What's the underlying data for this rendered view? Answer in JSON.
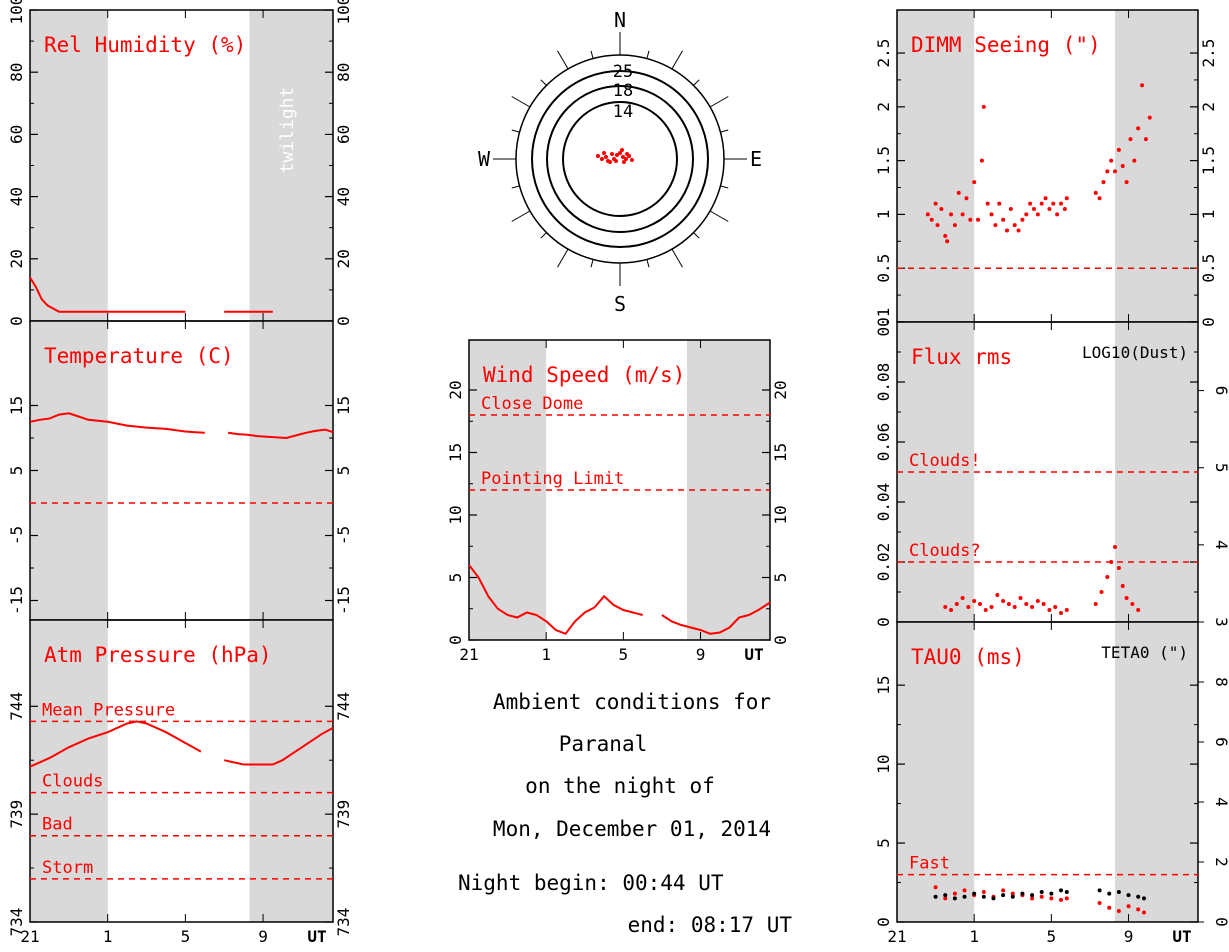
{
  "caption": {
    "line1": "Ambient conditions for",
    "line2": "Paranal",
    "line3": "on the night of",
    "line4": "Mon, December 01, 2014",
    "night_begin": "Night begin: 00:44 UT",
    "night_end": "end: 08:17 UT"
  },
  "colors": {
    "data": "#ff0000",
    "twilight": "#d9d9d9",
    "secondary": "#000000"
  },
  "time_axis": {
    "ticks": [
      "21",
      "1",
      "5",
      "9"
    ],
    "unit": "UT"
  },
  "chart_data": [
    {
      "id": "humidity",
      "type": "line",
      "title": "Rel Humidity (%)",
      "ylim": [
        0,
        100
      ],
      "yticks": [
        "0",
        "20",
        "40",
        "60",
        "80",
        "100"
      ],
      "annotation": "twilight",
      "series": [
        {
          "x": [
            21.0,
            21.3,
            21.6,
            21.9,
            22.2,
            22.5,
            23.0,
            23.5,
            24.0,
            25.0,
            26.0,
            27.0,
            28.0,
            29.0
          ],
          "y": [
            14,
            11,
            7,
            5,
            4,
            3,
            3,
            3,
            3,
            3,
            3,
            3,
            3,
            3
          ]
        },
        {
          "x": [
            31.0,
            32.0,
            33.0,
            33.5
          ],
          "y": [
            3,
            3,
            3,
            3
          ]
        }
      ]
    },
    {
      "id": "temperature",
      "type": "line",
      "title": "Temperature (C)",
      "ylim": [
        -18,
        28
      ],
      "yticks": [
        "-15",
        "-5",
        "5",
        "15"
      ],
      "reference_lines": [
        {
          "y": 0,
          "label": ""
        }
      ],
      "series": [
        {
          "x": [
            21.0,
            21.5,
            22.0,
            22.5,
            23.0,
            23.5,
            24.0,
            25.0,
            26.0,
            27.0,
            28.0,
            29.0,
            29.5,
            30.0
          ],
          "y": [
            12.5,
            12.8,
            13.0,
            13.6,
            13.8,
            13.3,
            12.8,
            12.5,
            11.9,
            11.6,
            11.4,
            11.0,
            10.9,
            10.8
          ]
        },
        {
          "x": [
            31.2,
            31.7,
            32.2,
            32.7,
            33.2,
            33.7,
            34.2,
            34.7,
            35.2,
            35.7,
            36.2,
            36.6
          ],
          "y": [
            10.8,
            10.6,
            10.5,
            10.3,
            10.2,
            10.1,
            10.0,
            10.4,
            10.8,
            11.1,
            11.3,
            10.9
          ]
        }
      ]
    },
    {
      "id": "pressure",
      "type": "line",
      "title": "Atm Pressure (hPa)",
      "ylim": [
        734,
        748
      ],
      "yticks": [
        "734",
        "739",
        "744"
      ],
      "reference_lines": [
        {
          "y": 743.3,
          "label": "Mean Pressure"
        },
        {
          "y": 740.0,
          "label": "Clouds"
        },
        {
          "y": 738.0,
          "label": "Bad"
        },
        {
          "y": 736.0,
          "label": "Storm"
        }
      ],
      "series": [
        {
          "x": [
            21.0,
            22.0,
            23.0,
            24.0,
            25.0,
            26.0,
            26.5,
            27.0,
            28.0,
            29.0,
            29.8
          ],
          "y": [
            741.2,
            741.6,
            742.1,
            742.5,
            742.8,
            743.2,
            743.3,
            743.2,
            742.8,
            742.3,
            741.9
          ]
        },
        {
          "x": [
            31.0,
            31.5,
            32.0,
            32.5,
            33.0,
            33.5,
            34.0,
            34.5,
            35.0,
            35.5,
            36.0,
            36.6
          ],
          "y": [
            741.5,
            741.4,
            741.3,
            741.3,
            741.3,
            741.3,
            741.5,
            741.8,
            742.1,
            742.4,
            742.7,
            743.0
          ]
        }
      ]
    },
    {
      "id": "wind",
      "type": "line",
      "title": "Wind Speed (m/s)",
      "ylim": [
        0,
        24
      ],
      "yticks": [
        "0",
        "5",
        "10",
        "15",
        "20"
      ],
      "reference_lines": [
        {
          "y": 18,
          "label": "Close Dome"
        },
        {
          "y": 12,
          "label": "Pointing Limit"
        }
      ],
      "series": [
        {
          "x": [
            21.0,
            21.5,
            22.0,
            22.5,
            23.0,
            23.5,
            24.0,
            24.5,
            25.0,
            25.5,
            26.0,
            26.5,
            27.0,
            27.5,
            28.0,
            28.5,
            29.0,
            29.5,
            30.0
          ],
          "y": [
            6.0,
            5.0,
            3.5,
            2.5,
            2.0,
            1.8,
            2.2,
            2.0,
            1.5,
            0.8,
            0.5,
            1.5,
            2.2,
            2.6,
            3.5,
            2.8,
            2.4,
            2.2,
            2.0
          ]
        },
        {
          "x": [
            31.0,
            31.5,
            32.0,
            32.5,
            33.0,
            33.5,
            34.0,
            34.5,
            35.0,
            35.5,
            36.0,
            36.6
          ],
          "y": [
            2.0,
            1.5,
            1.2,
            1.0,
            0.8,
            0.5,
            0.6,
            1.0,
            1.8,
            2.0,
            2.4,
            3.0
          ]
        }
      ]
    },
    {
      "id": "seeing",
      "type": "scatter",
      "title": "DIMM Seeing (\")",
      "ylim": [
        0,
        2.9
      ],
      "yticks": [
        "0",
        "0.5",
        "1",
        "1.5",
        "2",
        "2.5"
      ],
      "reference_lines": [
        {
          "y": 0.5,
          "label": ""
        }
      ],
      "series": [
        {
          "x": [
            22.6,
            22.8,
            23.0,
            23.1,
            23.3,
            23.5,
            23.6,
            23.8,
            24.0,
            24.2,
            24.4,
            24.6,
            24.8,
            25.0,
            25.2,
            25.4,
            25.5,
            25.7,
            25.9,
            26.1,
            26.3,
            26.5,
            26.7,
            26.9,
            27.1,
            27.3,
            27.5,
            27.7,
            27.9,
            28.1,
            28.3,
            28.5,
            28.7,
            28.9,
            29.1,
            29.3,
            29.5,
            29.7,
            29.8,
            31.3,
            31.5,
            31.7,
            31.9,
            32.1,
            32.3,
            32.5,
            32.7,
            32.9,
            33.1,
            33.3,
            33.5,
            33.7,
            33.9,
            34.1
          ],
          "y": [
            1.0,
            0.95,
            1.1,
            0.9,
            1.05,
            0.8,
            0.75,
            1.0,
            0.9,
            1.2,
            1.0,
            1.15,
            0.95,
            1.3,
            0.95,
            1.5,
            2.0,
            1.1,
            1.0,
            0.9,
            1.1,
            0.95,
            0.85,
            1.05,
            0.9,
            0.85,
            0.95,
            1.0,
            1.1,
            1.05,
            1.0,
            1.1,
            1.15,
            1.05,
            1.1,
            1.0,
            1.1,
            1.05,
            1.15,
            1.2,
            1.15,
            1.3,
            1.4,
            1.5,
            1.4,
            1.6,
            1.45,
            1.3,
            1.7,
            1.5,
            1.8,
            2.2,
            1.7,
            1.9
          ]
        }
      ]
    },
    {
      "id": "flux",
      "type": "scatter",
      "title": "Flux rms",
      "secondary_title": "LOG10(Dust)",
      "ylim": [
        0,
        0.1
      ],
      "yticks": [
        "0",
        "0.02",
        "0.04",
        "0.06",
        "0.08",
        "0.1"
      ],
      "y2ticks": [
        "3",
        "4",
        "5",
        "6"
      ],
      "reference_lines": [
        {
          "y": 0.05,
          "label": "Clouds!"
        },
        {
          "y": 0.02,
          "label": "Clouds?"
        }
      ],
      "series": [
        {
          "x": [
            23.5,
            23.8,
            24.1,
            24.4,
            24.7,
            25.0,
            25.3,
            25.6,
            25.9,
            26.2,
            26.5,
            26.8,
            27.1,
            27.4,
            27.7,
            28.0,
            28.3,
            28.6,
            28.9,
            29.2,
            29.5,
            29.8,
            31.3,
            31.6,
            31.9,
            32.1,
            32.3,
            32.5,
            32.7,
            32.9,
            33.2,
            33.5
          ],
          "y": [
            0.005,
            0.004,
            0.006,
            0.008,
            0.005,
            0.007,
            0.006,
            0.004,
            0.005,
            0.009,
            0.007,
            0.006,
            0.005,
            0.008,
            0.006,
            0.005,
            0.007,
            0.006,
            0.004,
            0.005,
            0.003,
            0.004,
            0.006,
            0.01,
            0.015,
            0.02,
            0.025,
            0.018,
            0.012,
            0.008,
            0.006,
            0.004
          ]
        }
      ]
    },
    {
      "id": "tau",
      "type": "scatter",
      "title": "TAU0 (ms)",
      "secondary_title": "TETA0 (\")",
      "ylim": [
        0,
        19
      ],
      "yticks": [
        "0",
        "5",
        "10",
        "15"
      ],
      "y2ticks": [
        "0",
        "2",
        "4",
        "6",
        "8"
      ],
      "reference_lines": [
        {
          "y": 3.0,
          "label": "Fast"
        }
      ],
      "series": [
        {
          "name": "TAU0 (ms)",
          "x": [
            23.0,
            23.5,
            24.0,
            24.5,
            25.0,
            25.5,
            26.0,
            26.5,
            27.0,
            27.5,
            28.0,
            28.5,
            29.0,
            29.5,
            29.8,
            31.5,
            32.0,
            32.5,
            33.0,
            33.5,
            33.8
          ],
          "y": [
            2.2,
            1.5,
            1.8,
            2.0,
            1.7,
            1.9,
            1.6,
            2.0,
            1.8,
            1.7,
            1.5,
            1.6,
            1.5,
            1.4,
            1.5,
            1.2,
            0.9,
            0.7,
            1.0,
            0.8,
            0.6
          ]
        },
        {
          "name": "TETA0 (\")",
          "x": [
            23.0,
            23.5,
            24.0,
            24.5,
            25.0,
            25.5,
            26.0,
            26.5,
            27.0,
            27.5,
            28.0,
            28.5,
            29.0,
            29.5,
            29.8,
            31.5,
            32.0,
            32.5,
            33.0,
            33.5,
            33.8
          ],
          "y": [
            1.6,
            1.7,
            1.5,
            1.6,
            1.8,
            1.6,
            1.5,
            1.7,
            1.6,
            1.8,
            1.7,
            1.9,
            1.8,
            2.0,
            1.9,
            2.0,
            1.8,
            1.9,
            1.7,
            1.6,
            1.5
          ]
        }
      ]
    },
    {
      "id": "wind_rose",
      "type": "scatter",
      "directions": [
        "N",
        "E",
        "S",
        "W"
      ],
      "ring_labels": [
        "25",
        "18",
        "14"
      ]
    }
  ]
}
